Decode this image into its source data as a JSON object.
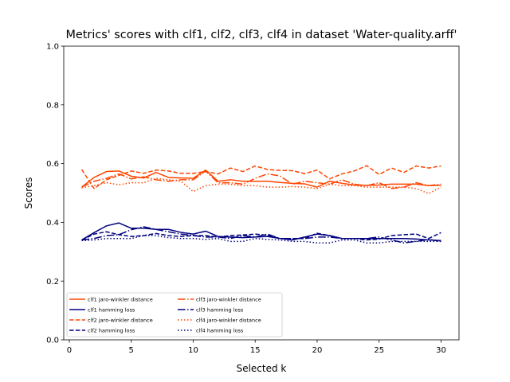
{
  "chart_data": {
    "type": "line",
    "title": "Metrics' scores with clf1, clf2, clf3, clf4 in dataset 'Water-quality.arff'",
    "xlabel": "Selected k",
    "ylabel": "Scores",
    "xlim": [
      -0.45,
      31.45
    ],
    "ylim": [
      0.0,
      1.0
    ],
    "xticks": [
      "0",
      "5",
      "10",
      "15",
      "20",
      "25",
      "30"
    ],
    "yticks": [
      "0.0",
      "0.2",
      "0.4",
      "0.6",
      "0.8",
      "1.0"
    ],
    "grid": false,
    "legend_position": "lower-left",
    "legend_columns": 2,
    "colors": {
      "jaro-winkler": "#ff4500",
      "hamming": "#000080"
    },
    "x": [
      1,
      2,
      3,
      4,
      5,
      6,
      7,
      8,
      9,
      10,
      11,
      12,
      13,
      14,
      15,
      16,
      17,
      18,
      19,
      20,
      21,
      22,
      23,
      24,
      25,
      26,
      27,
      28,
      29,
      30
    ],
    "series": [
      {
        "name": "clf1 jaro-winkler distance",
        "color": "#ff4500",
        "dash": "solid",
        "values": [
          0.52,
          0.553,
          0.573,
          0.575,
          0.557,
          0.551,
          0.57,
          0.553,
          0.551,
          0.55,
          0.578,
          0.54,
          0.545,
          0.54,
          0.54,
          0.54,
          0.536,
          0.533,
          0.531,
          0.52,
          0.54,
          0.533,
          0.527,
          0.526,
          0.527,
          0.53,
          0.53,
          0.53,
          0.525,
          0.526
        ]
      },
      {
        "name": "clf1 hamming loss",
        "color": "#000080",
        "dash": "solid",
        "values": [
          0.34,
          0.365,
          0.388,
          0.398,
          0.38,
          0.38,
          0.376,
          0.376,
          0.366,
          0.36,
          0.37,
          0.352,
          0.35,
          0.348,
          0.35,
          0.352,
          0.345,
          0.34,
          0.35,
          0.36,
          0.355,
          0.345,
          0.345,
          0.345,
          0.345,
          0.345,
          0.345,
          0.343,
          0.34,
          0.338
        ]
      },
      {
        "name": "clf2 jaro-winkler distance",
        "color": "#ff4500",
        "dash": "dashed",
        "values": [
          0.58,
          0.515,
          0.545,
          0.56,
          0.575,
          0.567,
          0.578,
          0.575,
          0.567,
          0.567,
          0.573,
          0.565,
          0.585,
          0.573,
          0.592,
          0.58,
          0.577,
          0.576,
          0.566,
          0.578,
          0.548,
          0.565,
          0.575,
          0.593,
          0.563,
          0.585,
          0.57,
          0.592,
          0.585,
          0.592
        ]
      },
      {
        "name": "clf2 hamming loss",
        "color": "#000080",
        "dash": "dashed",
        "values": [
          0.34,
          0.36,
          0.368,
          0.358,
          0.352,
          0.355,
          0.362,
          0.355,
          0.352,
          0.355,
          0.355,
          0.35,
          0.355,
          0.357,
          0.36,
          0.356,
          0.345,
          0.345,
          0.345,
          0.363,
          0.355,
          0.345,
          0.345,
          0.34,
          0.343,
          0.355,
          0.358,
          0.36,
          0.345,
          0.365
        ]
      },
      {
        "name": "clf3 jaro-winkler distance",
        "color": "#ff4500",
        "dash": "dashdot",
        "values": [
          0.52,
          0.54,
          0.55,
          0.565,
          0.548,
          0.555,
          0.545,
          0.54,
          0.545,
          0.545,
          0.575,
          0.535,
          0.535,
          0.53,
          0.55,
          0.565,
          0.558,
          0.53,
          0.54,
          0.535,
          0.53,
          0.545,
          0.53,
          0.525,
          0.535,
          0.515,
          0.52,
          0.535,
          0.525,
          0.53
        ]
      },
      {
        "name": "clf3 hamming loss",
        "color": "#000080",
        "dash": "dashdot",
        "values": [
          0.34,
          0.345,
          0.355,
          0.358,
          0.375,
          0.385,
          0.376,
          0.368,
          0.36,
          0.355,
          0.35,
          0.35,
          0.345,
          0.355,
          0.35,
          0.36,
          0.345,
          0.345,
          0.345,
          0.35,
          0.35,
          0.345,
          0.345,
          0.345,
          0.35,
          0.34,
          0.33,
          0.335,
          0.342,
          0.335
        ]
      },
      {
        "name": "clf4 jaro-winkler distance",
        "color": "#ff4500",
        "dash": "dotted",
        "values": [
          0.518,
          0.525,
          0.535,
          0.528,
          0.535,
          0.535,
          0.55,
          0.545,
          0.54,
          0.505,
          0.525,
          0.53,
          0.53,
          0.525,
          0.525,
          0.52,
          0.52,
          0.522,
          0.52,
          0.515,
          0.53,
          0.525,
          0.525,
          0.52,
          0.52,
          0.52,
          0.52,
          0.515,
          0.498,
          0.52
        ]
      },
      {
        "name": "clf4 hamming loss",
        "color": "#000080",
        "dash": "dotted",
        "values": [
          0.338,
          0.34,
          0.345,
          0.345,
          0.345,
          0.355,
          0.355,
          0.348,
          0.345,
          0.345,
          0.342,
          0.345,
          0.335,
          0.335,
          0.345,
          0.342,
          0.34,
          0.335,
          0.335,
          0.33,
          0.33,
          0.34,
          0.34,
          0.33,
          0.33,
          0.335,
          0.335,
          0.335,
          0.335,
          0.335
        ]
      }
    ]
  }
}
